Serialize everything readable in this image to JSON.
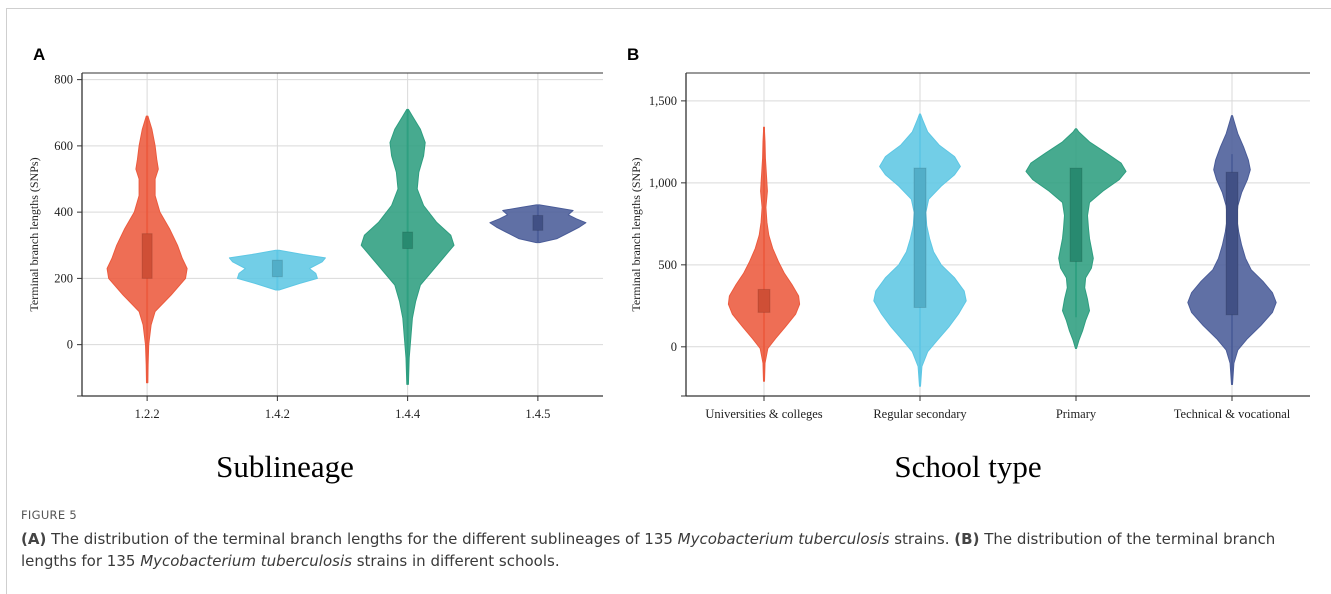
{
  "caption": {
    "figure_label": "FIGURE 5",
    "a_tag": "(A)",
    "a_pre": " The distribution of the terminal branch lengths for the different sublineages of 135 ",
    "species": "Mycobacterium tuberculosis",
    "a_post": " strains. ",
    "b_tag": "(B)",
    "b_pre": " The distribution of the terminal branch lengths for 135 ",
    "b_post": " strains in different schools."
  },
  "chart_data": [
    {
      "panel": "A",
      "type": "violin",
      "xlabel": "Sublineage",
      "ylabel": "Terminal branch lengths (SNPs)",
      "ylim": [
        -155,
        820
      ],
      "yticks": [
        0,
        200,
        400,
        600,
        800
      ],
      "ytick_labels": [
        "0",
        "200",
        "400",
        "600",
        "800"
      ],
      "grid": true,
      "categories": [
        "1.2.2",
        "1.4.2",
        "1.4.4",
        "1.4.5"
      ],
      "series": [
        {
          "category": "1.2.2",
          "color": "#ec5a3e",
          "q1": 200,
          "q3": 335,
          "whisker": [
            -115,
            690
          ],
          "density": [
            [
              -115,
              0.4
            ],
            [
              -60,
              0.6
            ],
            [
              0,
              1
            ],
            [
              60,
              2.5
            ],
            [
              100,
              5
            ],
            [
              150,
              15
            ],
            [
              200,
              24
            ],
            [
              230,
              25
            ],
            [
              260,
              22
            ],
            [
              300,
              19
            ],
            [
              350,
              14
            ],
            [
              400,
              8
            ],
            [
              450,
              5
            ],
            [
              500,
              5
            ],
            [
              530,
              7
            ],
            [
              560,
              6
            ],
            [
              600,
              5
            ],
            [
              650,
              3
            ],
            [
              690,
              0.5
            ]
          ]
        },
        {
          "category": "1.4.2",
          "color": "#5ec7e4",
          "q1": 205,
          "q3": 255,
          "whisker": [
            165,
            285
          ],
          "density": [
            [
              165,
              1
            ],
            [
              185,
              14
            ],
            [
              200,
              25
            ],
            [
              215,
              24
            ],
            [
              230,
              20
            ],
            [
              250,
              28
            ],
            [
              262,
              30
            ],
            [
              272,
              16
            ],
            [
              285,
              1
            ]
          ]
        },
        {
          "category": "1.4.4",
          "color": "#2e9e80",
          "q1": 290,
          "q3": 340,
          "whisker": [
            -120,
            710
          ],
          "density": [
            [
              -120,
              0.5
            ],
            [
              -40,
              1
            ],
            [
              20,
              2
            ],
            [
              80,
              3
            ],
            [
              130,
              5
            ],
            [
              180,
              8
            ],
            [
              220,
              15
            ],
            [
              260,
              22
            ],
            [
              300,
              29
            ],
            [
              330,
              27
            ],
            [
              370,
              18
            ],
            [
              420,
              10
            ],
            [
              470,
              6
            ],
            [
              520,
              7
            ],
            [
              570,
              10
            ],
            [
              610,
              11
            ],
            [
              650,
              8
            ],
            [
              690,
              3
            ],
            [
              710,
              0.5
            ]
          ]
        },
        {
          "category": "1.4.5",
          "color": "#4a5c98",
          "q1": 345,
          "q3": 390,
          "whisker": [
            310,
            420
          ],
          "density": [
            [
              308,
              1
            ],
            [
              320,
              12
            ],
            [
              340,
              20
            ],
            [
              355,
              26
            ],
            [
              368,
              30
            ],
            [
              380,
              24
            ],
            [
              392,
              19
            ],
            [
              405,
              22
            ],
            [
              415,
              10
            ],
            [
              422,
              1
            ]
          ]
        }
      ]
    },
    {
      "panel": "B",
      "type": "violin",
      "xlabel": "School type",
      "ylabel": "Terminal branch lengths (SNPs)",
      "ylim": [
        -300,
        1670
      ],
      "yticks": [
        0,
        500,
        1000,
        1500
      ],
      "ytick_labels": [
        "0",
        "500",
        "1,000",
        "1,500"
      ],
      "grid": true,
      "categories": [
        "Universities & colleges",
        "Regular secondary",
        "Primary",
        "Technical & vocational"
      ],
      "series": [
        {
          "category": "Universities & colleges",
          "color": "#ec5a3e",
          "q1": 210,
          "q3": 350,
          "whisker": [
            -210,
            1340
          ],
          "density": [
            [
              -210,
              0.5
            ],
            [
              -100,
              1
            ],
            [
              -10,
              4
            ],
            [
              50,
              12
            ],
            [
              120,
              22
            ],
            [
              200,
              33
            ],
            [
              260,
              37
            ],
            [
              310,
              36
            ],
            [
              380,
              29
            ],
            [
              450,
              21
            ],
            [
              520,
              15
            ],
            [
              600,
              9
            ],
            [
              680,
              5
            ],
            [
              760,
              3
            ],
            [
              850,
              2
            ],
            [
              950,
              3.5
            ],
            [
              1050,
              2.5
            ],
            [
              1150,
              1.5
            ],
            [
              1250,
              1
            ],
            [
              1340,
              0.3
            ]
          ]
        },
        {
          "category": "Regular secondary",
          "color": "#5ec7e4",
          "q1": 240,
          "q3": 1090,
          "whisker": [
            -240,
            1420
          ],
          "density": [
            [
              -240,
              0.5
            ],
            [
              -120,
              2
            ],
            [
              -30,
              8
            ],
            [
              40,
              18
            ],
            [
              120,
              30
            ],
            [
              200,
              40
            ],
            [
              280,
              48
            ],
            [
              340,
              46
            ],
            [
              420,
              36
            ],
            [
              500,
              22
            ],
            [
              580,
              14
            ],
            [
              660,
              10
            ],
            [
              740,
              7
            ],
            [
              820,
              6
            ],
            [
              900,
              9
            ],
            [
              980,
              22
            ],
            [
              1050,
              36
            ],
            [
              1100,
              42
            ],
            [
              1160,
              36
            ],
            [
              1230,
              20
            ],
            [
              1310,
              8
            ],
            [
              1380,
              3
            ],
            [
              1420,
              0.5
            ]
          ]
        },
        {
          "category": "Primary",
          "color": "#2e9e80",
          "q1": 520,
          "q3": 1090,
          "whisker": [
            180,
            1080
          ],
          "density": [
            [
              -10,
              0.5
            ],
            [
              40,
              3
            ],
            [
              100,
              7
            ],
            [
              160,
              10
            ],
            [
              220,
              14
            ],
            [
              290,
              12
            ],
            [
              360,
              9
            ],
            [
              420,
              10
            ],
            [
              480,
              16
            ],
            [
              540,
              18
            ],
            [
              600,
              16
            ],
            [
              660,
              14
            ],
            [
              720,
              13
            ],
            [
              800,
              12
            ],
            [
              880,
              14
            ],
            [
              950,
              28
            ],
            [
              1020,
              45
            ],
            [
              1070,
              52
            ],
            [
              1120,
              47
            ],
            [
              1180,
              32
            ],
            [
              1250,
              14
            ],
            [
              1310,
              3
            ],
            [
              1330,
              0.5
            ]
          ]
        },
        {
          "category": "Technical & vocational",
          "color": "#4a5c98",
          "q1": 195,
          "q3": 1065,
          "whisker": [
            -230,
            1175
          ],
          "density": [
            [
              -230,
              0.5
            ],
            [
              -100,
              2
            ],
            [
              -20,
              6
            ],
            [
              50,
              16
            ],
            [
              130,
              30
            ],
            [
              210,
              42
            ],
            [
              270,
              46
            ],
            [
              330,
              42
            ],
            [
              400,
              32
            ],
            [
              470,
              20
            ],
            [
              540,
              14
            ],
            [
              620,
              10
            ],
            [
              700,
              7
            ],
            [
              780,
              5
            ],
            [
              860,
              6
            ],
            [
              940,
              10
            ],
            [
              1020,
              16
            ],
            [
              1080,
              19
            ],
            [
              1140,
              17
            ],
            [
              1220,
              12
            ],
            [
              1300,
              6
            ],
            [
              1380,
              2
            ],
            [
              1410,
              0.5
            ]
          ]
        }
      ]
    }
  ]
}
